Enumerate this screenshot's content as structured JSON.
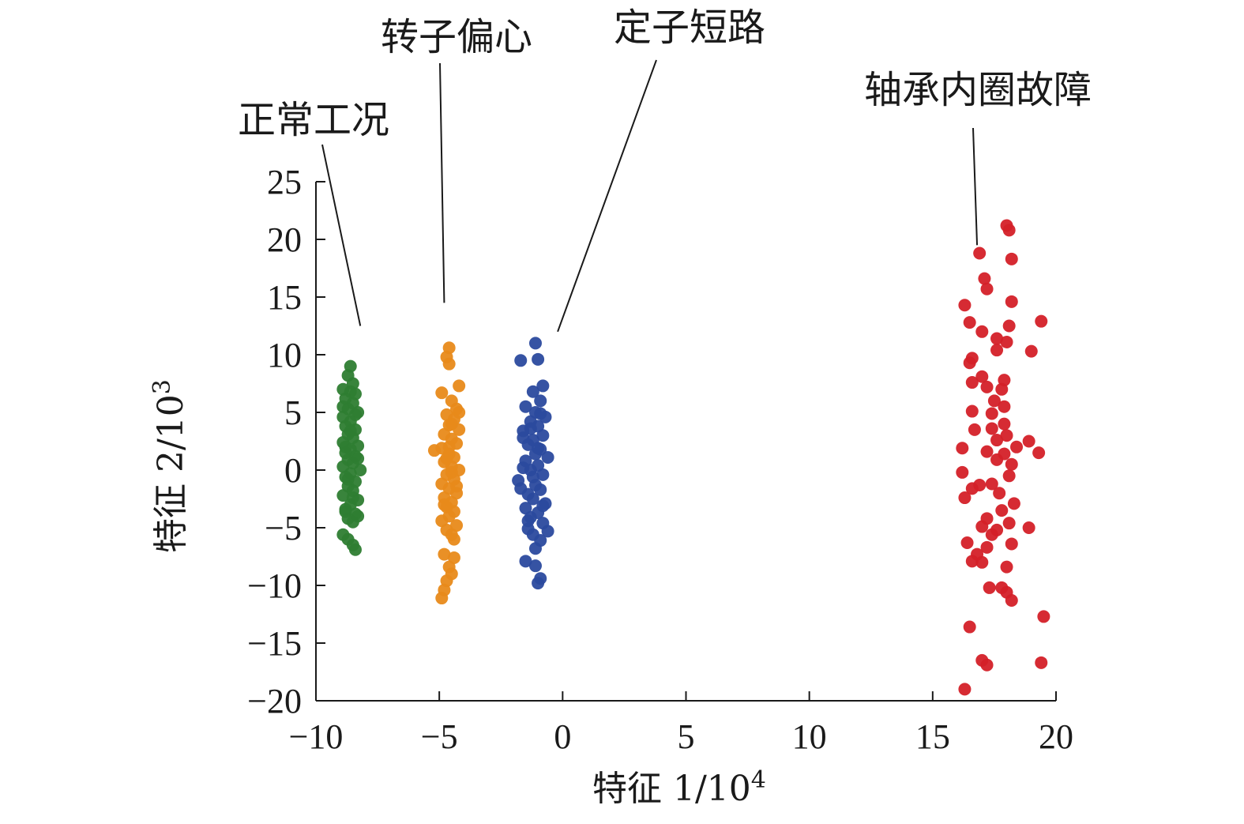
{
  "chart_data": {
    "type": "scatter",
    "title": "",
    "xlabel": "特征 1/10",
    "xlabel_exp": "4",
    "ylabel": "特征 2/10",
    "ylabel_exp": "3",
    "xlim": [
      -10,
      20
    ],
    "ylim": [
      -20,
      25
    ],
    "x_ticks": [
      -10,
      -5,
      0,
      5,
      10,
      15,
      20
    ],
    "y_ticks": [
      -20,
      -15,
      -10,
      -5,
      0,
      5,
      10,
      15,
      20,
      25
    ],
    "x_tick_labels": [
      "−10",
      "−5",
      "0",
      "5",
      "10",
      "15",
      "20"
    ],
    "y_tick_labels": [
      "−20",
      "−15",
      "−10",
      "−5",
      "0",
      "5",
      "10",
      "15",
      "20",
      "25"
    ],
    "grid": false,
    "series": [
      {
        "name": "正常工况",
        "color": "#2e7d32",
        "label_anchor": [
          -8.2,
          12.5
        ],
        "points": [
          [
            -8.6,
            9.0
          ],
          [
            -8.7,
            8.2
          ],
          [
            -8.5,
            7.5
          ],
          [
            -8.9,
            7.0
          ],
          [
            -8.4,
            6.6
          ],
          [
            -8.8,
            6.2
          ],
          [
            -8.5,
            5.8
          ],
          [
            -8.7,
            5.3
          ],
          [
            -8.3,
            5.0
          ],
          [
            -8.9,
            4.6
          ],
          [
            -8.6,
            4.2
          ],
          [
            -8.8,
            3.8
          ],
          [
            -8.4,
            3.5
          ],
          [
            -8.7,
            3.1
          ],
          [
            -8.5,
            2.8
          ],
          [
            -8.9,
            2.4
          ],
          [
            -8.3,
            2.1
          ],
          [
            -8.6,
            1.8
          ],
          [
            -8.8,
            1.5
          ],
          [
            -8.4,
            1.2
          ],
          [
            -8.7,
            0.9
          ],
          [
            -8.5,
            0.6
          ],
          [
            -8.9,
            0.3
          ],
          [
            -8.2,
            0.0
          ],
          [
            -8.6,
            -0.3
          ],
          [
            -8.8,
            -0.6
          ],
          [
            -8.4,
            -1.0
          ],
          [
            -8.7,
            -1.4
          ],
          [
            -8.5,
            -1.8
          ],
          [
            -8.9,
            -2.2
          ],
          [
            -8.3,
            -2.6
          ],
          [
            -8.6,
            -3.0
          ],
          [
            -8.8,
            -3.4
          ],
          [
            -8.4,
            -3.8
          ],
          [
            -8.7,
            -4.2
          ],
          [
            -8.5,
            -4.5
          ],
          [
            -8.9,
            -5.6
          ],
          [
            -8.7,
            -6.0
          ],
          [
            -8.5,
            -6.5
          ],
          [
            -8.4,
            -6.9
          ],
          [
            -8.8,
            2.0
          ],
          [
            -8.6,
            3.4
          ],
          [
            -8.4,
            4.8
          ],
          [
            -8.7,
            -0.8
          ],
          [
            -8.5,
            -2.4
          ],
          [
            -8.3,
            1.0
          ],
          [
            -8.9,
            5.5
          ],
          [
            -8.6,
            6.8
          ],
          [
            -8.3,
            -4.0
          ],
          [
            -8.8,
            -3.6
          ]
        ]
      },
      {
        "name": "转子偏心",
        "color": "#e88a1a",
        "label_anchor": [
          -4.8,
          14.5
        ],
        "points": [
          [
            -4.6,
            10.6
          ],
          [
            -4.7,
            9.8
          ],
          [
            -4.6,
            9.2
          ],
          [
            -4.2,
            7.3
          ],
          [
            -4.9,
            6.7
          ],
          [
            -4.5,
            6.0
          ],
          [
            -4.3,
            5.3
          ],
          [
            -4.7,
            4.8
          ],
          [
            -4.4,
            4.4
          ],
          [
            -4.6,
            3.9
          ],
          [
            -4.2,
            3.5
          ],
          [
            -4.8,
            3.1
          ],
          [
            -4.5,
            2.7
          ],
          [
            -4.3,
            2.3
          ],
          [
            -4.9,
            1.9
          ],
          [
            -5.2,
            1.7
          ],
          [
            -4.6,
            1.4
          ],
          [
            -4.4,
            1.1
          ],
          [
            -4.8,
            0.7
          ],
          [
            -4.5,
            0.3
          ],
          [
            -4.2,
            0.0
          ],
          [
            -4.7,
            -0.4
          ],
          [
            -4.4,
            -0.8
          ],
          [
            -4.9,
            -1.2
          ],
          [
            -4.6,
            -1.6
          ],
          [
            -4.3,
            -2.0
          ],
          [
            -4.8,
            -2.4
          ],
          [
            -4.5,
            -2.8
          ],
          [
            -4.7,
            -3.2
          ],
          [
            -4.4,
            -3.6
          ],
          [
            -4.6,
            -4.0
          ],
          [
            -4.9,
            -4.4
          ],
          [
            -4.3,
            -4.8
          ],
          [
            -4.7,
            -5.2
          ],
          [
            -4.5,
            -5.6
          ],
          [
            -4.8,
            -7.3
          ],
          [
            -4.4,
            -7.6
          ],
          [
            -4.6,
            -8.4
          ],
          [
            -4.5,
            -9.0
          ],
          [
            -4.7,
            -9.6
          ],
          [
            -4.8,
            -10.4
          ],
          [
            -4.9,
            -11.1
          ],
          [
            -4.5,
            4.0
          ],
          [
            -4.3,
            -1.4
          ],
          [
            -4.6,
            2.0
          ],
          [
            -4.8,
            -3.0
          ],
          [
            -4.2,
            5.0
          ],
          [
            -4.4,
            -6.0
          ],
          [
            -4.7,
            1.0
          ],
          [
            -4.5,
            -0.2
          ]
        ]
      },
      {
        "name": "定子短路",
        "color": "#2b4a9e",
        "label_anchor": [
          -0.2,
          12.0
        ],
        "points": [
          [
            -1.1,
            11.0
          ],
          [
            -1.7,
            9.5
          ],
          [
            -1.0,
            9.6
          ],
          [
            -0.8,
            7.3
          ],
          [
            -1.2,
            6.8
          ],
          [
            -0.9,
            6.0
          ],
          [
            -1.5,
            5.5
          ],
          [
            -1.1,
            5.0
          ],
          [
            -0.7,
            4.6
          ],
          [
            -1.3,
            4.2
          ],
          [
            -1.0,
            3.8
          ],
          [
            -1.6,
            3.4
          ],
          [
            -0.8,
            3.0
          ],
          [
            -1.2,
            2.6
          ],
          [
            -1.4,
            2.2
          ],
          [
            -0.9,
            1.8
          ],
          [
            -1.1,
            1.4
          ],
          [
            -0.6,
            1.1
          ],
          [
            -1.5,
            0.8
          ],
          [
            -1.0,
            0.4
          ],
          [
            -1.3,
            0.0
          ],
          [
            -0.8,
            -0.4
          ],
          [
            -1.8,
            -0.9
          ],
          [
            -1.1,
            -1.3
          ],
          [
            -0.9,
            -1.7
          ],
          [
            -1.4,
            -2.1
          ],
          [
            -1.2,
            -2.5
          ],
          [
            -0.7,
            -2.9
          ],
          [
            -1.5,
            -3.3
          ],
          [
            -1.0,
            -3.7
          ],
          [
            -1.3,
            -4.1
          ],
          [
            -0.8,
            -4.6
          ],
          [
            -1.4,
            -5.1
          ],
          [
            -0.6,
            -5.3
          ],
          [
            -1.2,
            -5.6
          ],
          [
            -0.9,
            -6.1
          ],
          [
            -1.5,
            -7.9
          ],
          [
            -1.1,
            -8.3
          ],
          [
            -0.9,
            -9.4
          ],
          [
            -1.0,
            -9.8
          ],
          [
            -1.6,
            2.8
          ],
          [
            -1.2,
            -0.6
          ],
          [
            -0.9,
            4.9
          ],
          [
            -1.4,
            -4.4
          ],
          [
            -1.0,
            1.9
          ],
          [
            -1.7,
            -1.6
          ],
          [
            -0.8,
            -3.1
          ],
          [
            -1.3,
            3.6
          ],
          [
            -1.1,
            -6.8
          ],
          [
            -1.6,
            0.2
          ]
        ]
      },
      {
        "name": "轴承内圈故障",
        "color": "#d42028",
        "label_anchor": [
          16.8,
          19.5
        ],
        "points": [
          [
            18.0,
            21.2
          ],
          [
            18.1,
            20.8
          ],
          [
            16.9,
            18.8
          ],
          [
            18.2,
            18.3
          ],
          [
            17.1,
            16.6
          ],
          [
            17.2,
            15.7
          ],
          [
            18.2,
            14.6
          ],
          [
            16.3,
            14.3
          ],
          [
            16.5,
            12.8
          ],
          [
            19.4,
            12.9
          ],
          [
            17.0,
            12.0
          ],
          [
            18.1,
            12.5
          ],
          [
            17.6,
            11.4
          ],
          [
            18.0,
            11.1
          ],
          [
            17.6,
            10.4
          ],
          [
            19.0,
            10.3
          ],
          [
            16.6,
            9.7
          ],
          [
            16.5,
            9.3
          ],
          [
            17.0,
            8.1
          ],
          [
            17.9,
            7.8
          ],
          [
            16.6,
            7.6
          ],
          [
            17.2,
            7.2
          ],
          [
            17.8,
            7.0
          ],
          [
            17.5,
            6.0
          ],
          [
            17.9,
            5.5
          ],
          [
            16.6,
            5.1
          ],
          [
            17.4,
            4.9
          ],
          [
            17.9,
            4.0
          ],
          [
            17.4,
            3.6
          ],
          [
            16.7,
            3.5
          ],
          [
            18.0,
            3.0
          ],
          [
            17.6,
            2.6
          ],
          [
            18.9,
            2.5
          ],
          [
            18.4,
            2.0
          ],
          [
            16.2,
            1.9
          ],
          [
            17.2,
            1.6
          ],
          [
            17.9,
            1.4
          ],
          [
            19.3,
            1.5
          ],
          [
            17.6,
            0.9
          ],
          [
            18.2,
            0.5
          ],
          [
            16.2,
            -0.2
          ],
          [
            18.1,
            -0.5
          ],
          [
            17.4,
            -1.2
          ],
          [
            16.9,
            -1.3
          ],
          [
            16.6,
            -1.6
          ],
          [
            17.7,
            -2.0
          ],
          [
            16.3,
            -2.4
          ],
          [
            18.3,
            -2.9
          ],
          [
            17.8,
            -3.5
          ],
          [
            17.2,
            -4.2
          ],
          [
            17.0,
            -4.9
          ],
          [
            18.1,
            -4.6
          ],
          [
            17.6,
            -5.2
          ],
          [
            18.9,
            -5.0
          ],
          [
            17.4,
            -5.6
          ],
          [
            16.4,
            -6.3
          ],
          [
            17.2,
            -6.7
          ],
          [
            18.2,
            -6.4
          ],
          [
            16.8,
            -7.3
          ],
          [
            16.6,
            -7.9
          ],
          [
            18.0,
            -8.4
          ],
          [
            17.0,
            -8.0
          ],
          [
            17.3,
            -10.2
          ],
          [
            17.8,
            -10.2
          ],
          [
            18.0,
            -10.6
          ],
          [
            18.2,
            -11.3
          ],
          [
            19.5,
            -12.7
          ],
          [
            16.5,
            -13.6
          ],
          [
            17.0,
            -16.5
          ],
          [
            17.2,
            -16.9
          ],
          [
            19.4,
            -16.7
          ],
          [
            16.3,
            -19.0
          ]
        ]
      }
    ]
  }
}
